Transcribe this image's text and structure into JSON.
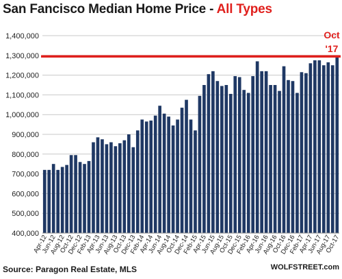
{
  "title": {
    "main": "San Fancisco Median Home Price - ",
    "accent": "All Types"
  },
  "footer": {
    "source": "Source: Paragon Real Estate, MLS",
    "brand": "WOLFSTREET.com"
  },
  "colors": {
    "bar": "#1f3864",
    "accent": "#e0201d",
    "grid": "#c8c8c8"
  },
  "chart_data": {
    "type": "bar",
    "title": "San Fancisco Median Home Price - All Types",
    "ylim": [
      400000,
      1400000
    ],
    "y_ticks": [
      "400,000",
      "500,000",
      "600,000",
      "700,000",
      "800,000",
      "900,000",
      "1,000,000",
      "1,100,000",
      "1,200,000",
      "1,300,000",
      "1,400,000"
    ],
    "y_tick_values": [
      400000,
      500000,
      600000,
      700000,
      800000,
      900000,
      1000000,
      1100000,
      1200000,
      1300000,
      1400000
    ],
    "grid": true,
    "categories": [
      "Apr-12",
      "May-12",
      "Jun-12",
      "Jul-12",
      "Aug-12",
      "Sep-12",
      "Oct-12",
      "Nov-12",
      "Dec-12",
      "Jan-13",
      "Feb-13",
      "Mar-13",
      "Apr-13",
      "May-13",
      "Jun-13",
      "Jul-13",
      "Aug-13",
      "Sep-13",
      "Oct-13",
      "Nov-13",
      "Dec-13",
      "Jan-14",
      "Feb-14",
      "Mar-14",
      "Apr-14",
      "May-14",
      "Jun-14",
      "Jul-14",
      "Aug-14",
      "Sep-14",
      "Oct-14",
      "Nov-14",
      "Dec-14",
      "Jan-15",
      "Feb-15",
      "Mar-15",
      "Apr-15",
      "May-15",
      "Jun-15",
      "Jul-15",
      "Aug-15",
      "Sep-15",
      "Oct-15",
      "Nov-15",
      "Dec-15",
      "Jan-16",
      "Feb-16",
      "Mar-16",
      "Apr-16",
      "May-16",
      "Jun-16",
      "Jul-16",
      "Aug-16",
      "Sep-16",
      "Oct-16",
      "Nov-16",
      "Dec-16",
      "Jan-17",
      "Feb-17",
      "Mar-17",
      "Apr-17",
      "May-17",
      "Jun-17",
      "Jul-17",
      "Aug-17",
      "Sep-17",
      "Oct-17"
    ],
    "x_labels_shown": [
      "Apr-12",
      "Jun-12",
      "Aug-12",
      "Oct-12",
      "Dec-12",
      "Feb-13",
      "Apr-13",
      "Jun-13",
      "Aug-13",
      "Oct-13",
      "Dec-13",
      "Feb-14",
      "Apr-14",
      "Jun-14",
      "Aug-14",
      "Oct-14",
      "Dec-14",
      "Feb-15",
      "Apr-15",
      "Jun-15",
      "Aug-15",
      "Oct-15",
      "Dec-15",
      "Feb-16",
      "Apr-16",
      "Jun-16",
      "Aug-16",
      "Oct-16",
      "Dec-16",
      "Feb-17",
      "Apr-17",
      "Jun-17",
      "Aug-17",
      "Oct-17"
    ],
    "values": [
      720000,
      720000,
      750000,
      720000,
      735000,
      745000,
      795000,
      795000,
      760000,
      750000,
      765000,
      860000,
      885000,
      875000,
      850000,
      860000,
      840000,
      855000,
      870000,
      900000,
      835000,
      920000,
      975000,
      965000,
      970000,
      995000,
      1045000,
      1005000,
      990000,
      945000,
      975000,
      1035000,
      1075000,
      975000,
      920000,
      1095000,
      1150000,
      1205000,
      1220000,
      1170000,
      1145000,
      1150000,
      1105000,
      1195000,
      1190000,
      1125000,
      1110000,
      1195000,
      1270000,
      1220000,
      1220000,
      1150000,
      1150000,
      1120000,
      1245000,
      1175000,
      1170000,
      1110000,
      1215000,
      1210000,
      1260000,
      1275000,
      1275000,
      1250000,
      1265000,
      1250000,
      1295000
    ],
    "reference_line": {
      "value": 1295000,
      "color": "#e0201d"
    },
    "annotation": {
      "line1": "Oct",
      "line2": "'17"
    }
  }
}
